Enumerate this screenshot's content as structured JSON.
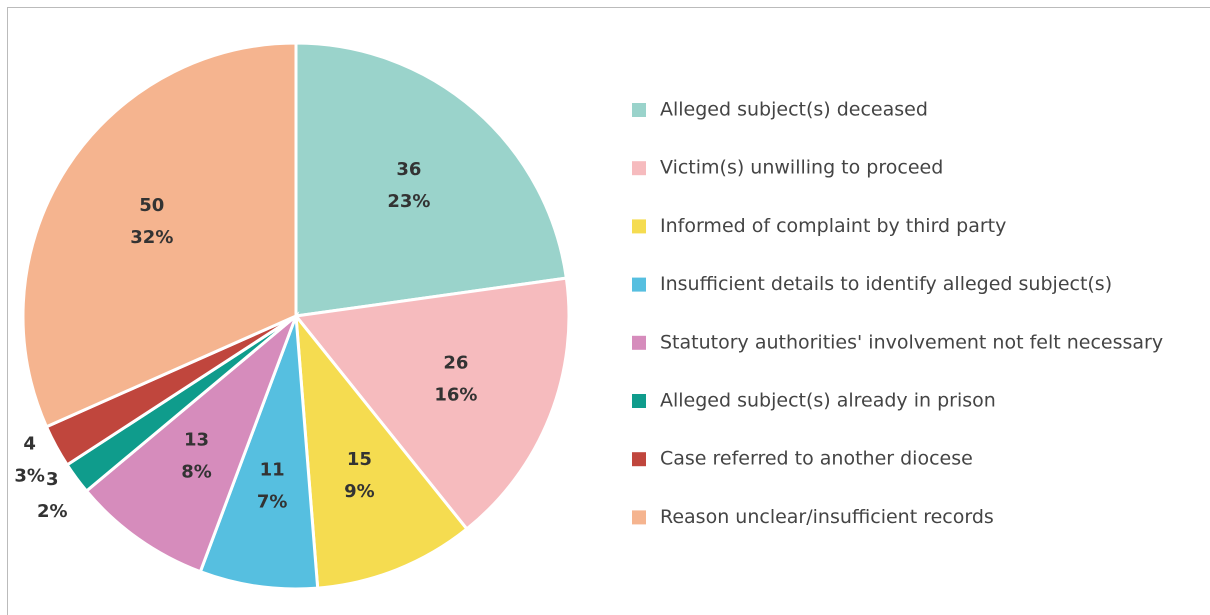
{
  "chart_data": {
    "type": "pie",
    "categories": [
      "Alleged subject(s) deceased",
      "Victim(s) unwilling to proceed",
      "Informed of complaint by third party",
      "Insufficient details to identify alleged subject(s)",
      "Statutory authorities' involvement not felt necessary",
      "Alleged subject(s) already in prison",
      "Case referred to another diocese",
      "Reason unclear/insufficient records"
    ],
    "values": [
      36,
      26,
      15,
      11,
      13,
      3,
      4,
      50
    ],
    "percent_labels": [
      "23%",
      "16%",
      "9%",
      "7%",
      "8%",
      "2%",
      "3%",
      "32%"
    ],
    "colors": [
      "#9ad3cb",
      "#f6bbbe",
      "#f5dc50",
      "#56bfe0",
      "#d68cbc",
      "#0f9c8c",
      "#c0463d",
      "#f5b48f"
    ],
    "legend": "right"
  }
}
